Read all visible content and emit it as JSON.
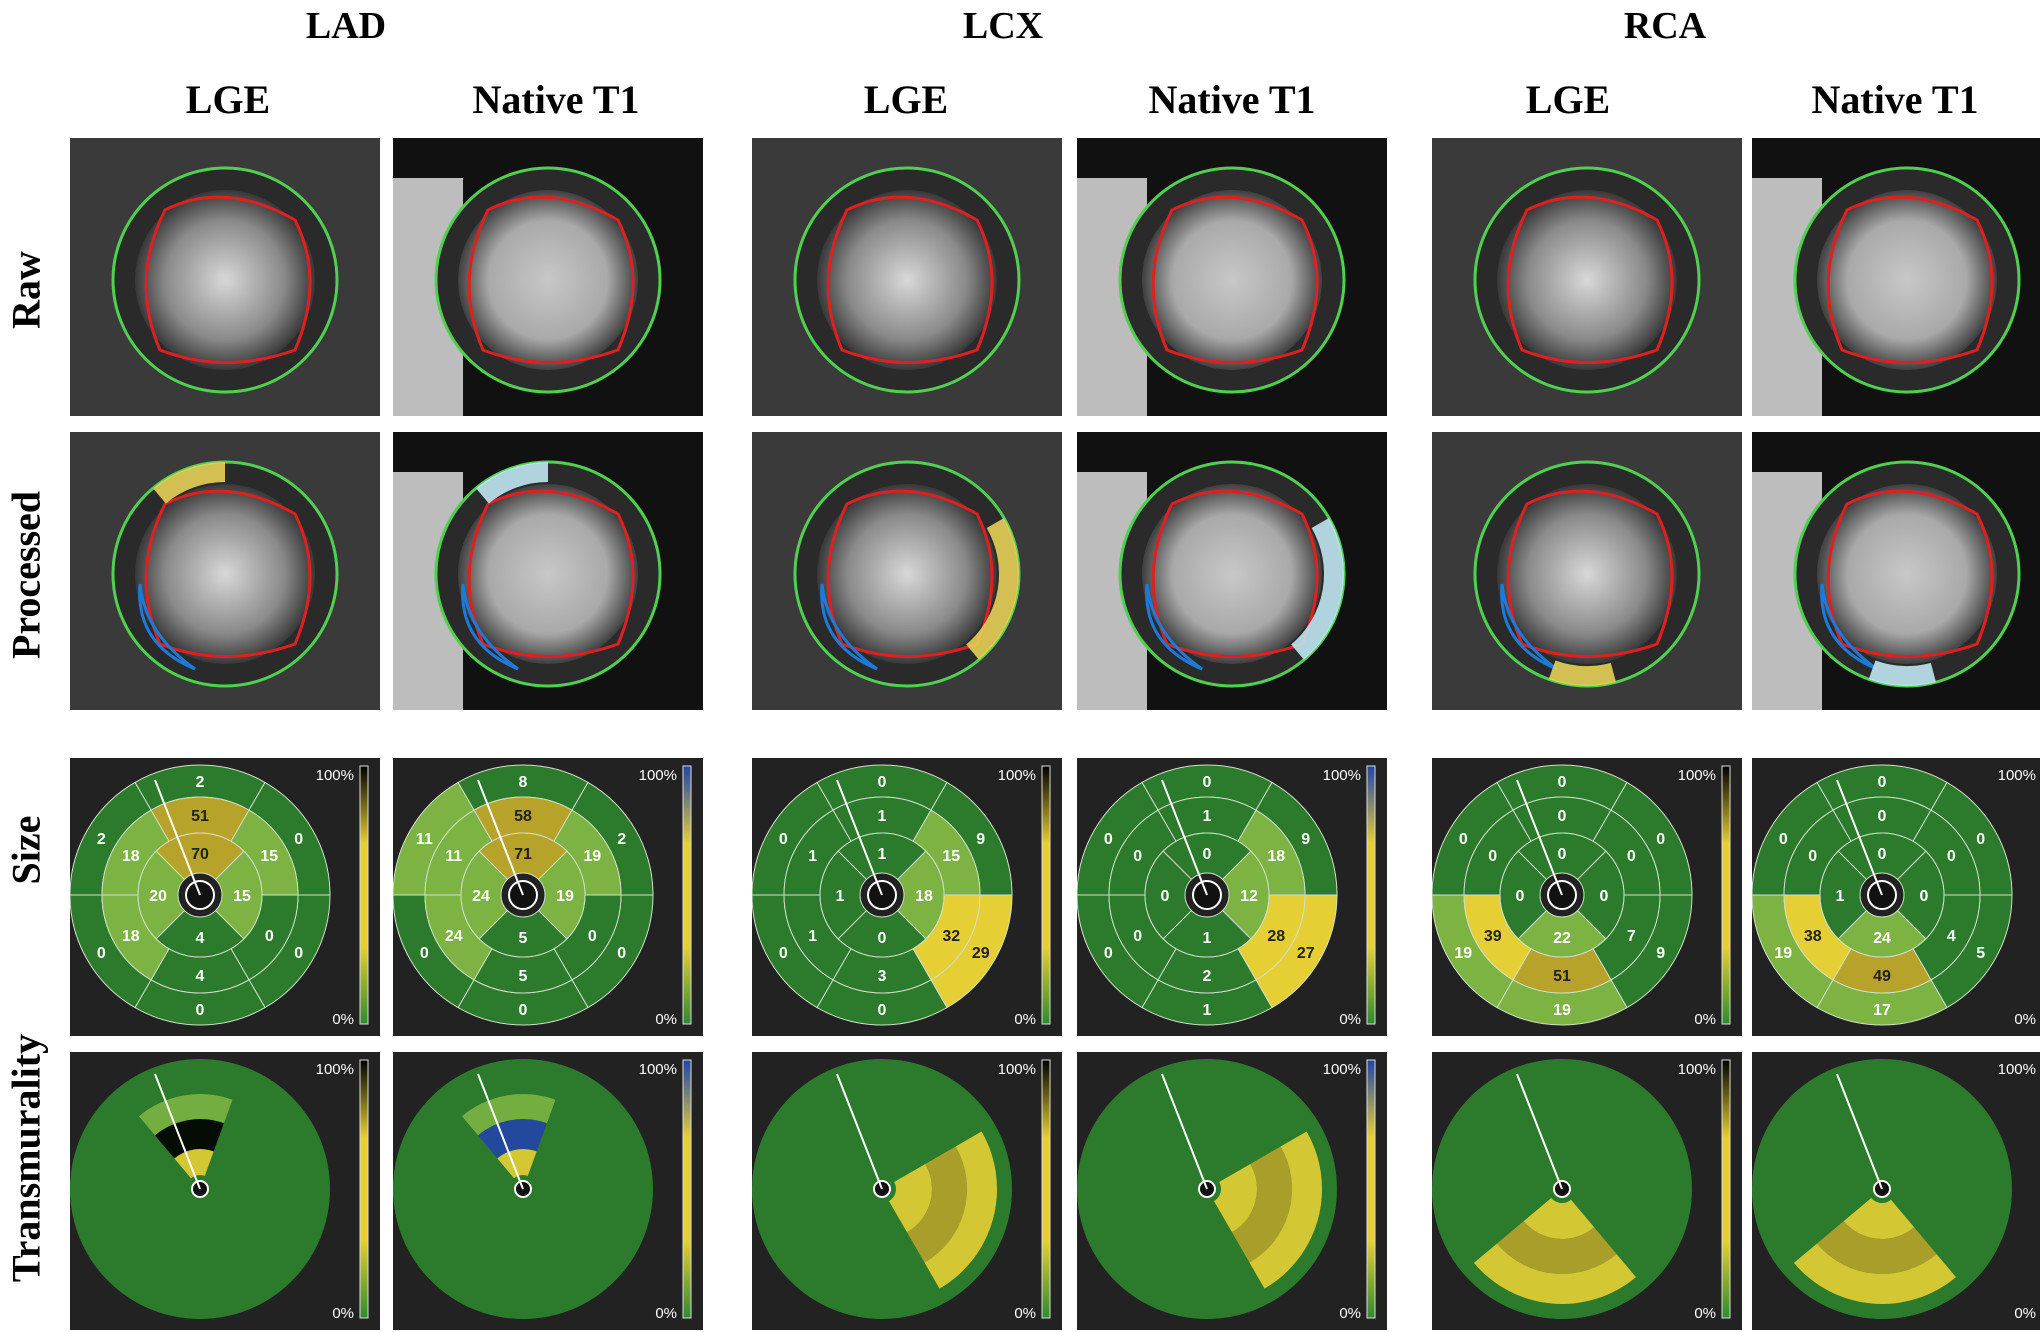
{
  "groups": [
    {
      "label": "LAD",
      "columns": [
        {
          "label": "LGE",
          "size_values": {
            "basal": [
              "2",
              "0",
              "0",
              "0",
              "0",
              "2"
            ],
            "mid": [
              "51",
              "15",
              "0",
              "4",
              "18",
              "18"
            ],
            "apical": [
              "70",
              "15",
              "4",
              "20"
            ]
          },
          "size_infarct": {
            "ring": "basal",
            "i": 0
          },
          "bar": {
            "top": "#000000",
            "mid": "#e6cf34",
            "bottom": "#2e8b2e"
          },
          "mri": "lge"
        },
        {
          "label": "Native T1",
          "size_values": {
            "basal": [
              "8",
              "2",
              "0",
              "0",
              "0",
              "11"
            ],
            "mid": [
              "58",
              "19",
              "0",
              "5",
              "24",
              "11"
            ],
            "apical": [
              "71",
              "19",
              "5",
              "24"
            ]
          },
          "size_infarct": {
            "ring": "basal",
            "i": 0
          },
          "bar": {
            "top": "#2244aa",
            "mid": "#e6cf34",
            "bottom": "#2e8b2e"
          },
          "mri": "t1"
        }
      ]
    },
    {
      "label": "LCX",
      "columns": [
        {
          "label": "LGE",
          "size_values": {
            "basal": [
              "0",
              "9",
              "29",
              "0",
              "0",
              "0"
            ],
            "mid": [
              "1",
              "15",
              "32",
              "3",
              "1",
              "1"
            ],
            "apical": [
              "1",
              "18",
              "0",
              "1"
            ]
          },
          "bar": {
            "top": "#000000",
            "mid": "#e6cf34",
            "bottom": "#2e8b2e"
          },
          "mri": "lge"
        },
        {
          "label": "Native T1",
          "size_values": {
            "basal": [
              "0",
              "9",
              "27",
              "1",
              "0",
              "0"
            ],
            "mid": [
              "1",
              "18",
              "28",
              "2",
              "0",
              "0"
            ],
            "apical": [
              "0",
              "12",
              "1",
              "0"
            ]
          },
          "bar": {
            "top": "#2244aa",
            "mid": "#e6cf34",
            "bottom": "#2e8b2e"
          },
          "mri": "t1"
        }
      ]
    },
    {
      "label": "RCA",
      "columns": [
        {
          "label": "LGE",
          "size_values": {
            "basal": [
              "0",
              "0",
              "9",
              "19",
              "19",
              "0"
            ],
            "mid": [
              "0",
              "0",
              "7",
              "51",
              "39",
              "0"
            ],
            "apical": [
              "0",
              "0",
              "22",
              "0"
            ]
          },
          "bar": {
            "top": "#000000",
            "mid": "#e6cf34",
            "bottom": "#2e8b2e"
          },
          "mri": "lge"
        },
        {
          "label": "Native T1",
          "size_values": {
            "basal": [
              "0",
              "0",
              "5",
              "17",
              "19",
              "0"
            ],
            "mid": [
              "0",
              "0",
              "4",
              "49",
              "38",
              "0"
            ],
            "apical": [
              "0",
              "0",
              "24",
              "1"
            ]
          },
          "bar": {
            "top": "#2244aa",
            "mid": "#e6cf34",
            "bottom": "#2e8b2e"
          },
          "mri": "t1"
        }
      ]
    }
  ],
  "rows": [
    "Raw",
    "Processed",
    "Size",
    "Transmurality"
  ],
  "scale": {
    "max": "100%",
    "min": "0%"
  },
  "colors": {
    "myocardium_green": "#2c7a2c",
    "light_green": "#7cb342",
    "yellow": "#e6cf34",
    "dark_yellow": "#b7a22a",
    "contour_green": "#4fd04f",
    "contour_red": "#e02020",
    "contour_blue": "#1e7ad8",
    "infarct_dash": "#e02020"
  }
}
